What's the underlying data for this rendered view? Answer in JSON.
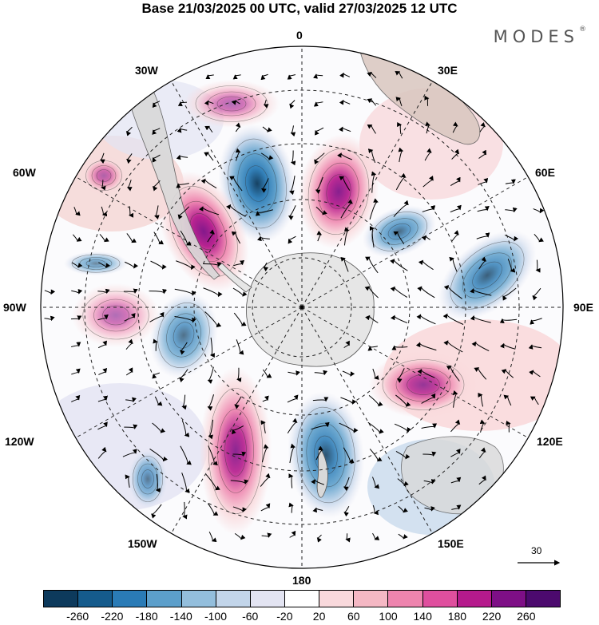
{
  "title": "Base 21/03/2025 00 UTC, valid 27/03/2025 12 UTC",
  "brand": "MODES",
  "brand_mark": "®",
  "meridian_labels": {
    "m0": "0",
    "m30e": "30E",
    "m60e": "60E",
    "m90e": "90E",
    "m120e": "120E",
    "m150e": "150E",
    "m180": "180",
    "m150w": "150W",
    "m120w": "120W",
    "m90w": "90W",
    "m60w": "60W",
    "m30w": "30W"
  },
  "wind_reference_label": "30",
  "colorbar": {
    "ticks": [
      "-260",
      "-220",
      "-180",
      "-140",
      "-100",
      "-60",
      "-20",
      "20",
      "60",
      "100",
      "140",
      "180",
      "220",
      "260"
    ],
    "colors": [
      "#0d3a5c",
      "#155b8c",
      "#2a7bb6",
      "#5c9fcb",
      "#93bedc",
      "#c2d5ea",
      "#e3e4f2",
      "#ffffff",
      "#f9d9dc",
      "#f5b8c4",
      "#ee84ae",
      "#df4f9e",
      "#b51a8c",
      "#7e0f86",
      "#4c0a6e"
    ]
  },
  "anomalies": [
    {
      "kind": "neg",
      "level": 0.85
    },
    {
      "kind": "pos",
      "level": 0.8
    },
    {
      "kind": "pos",
      "level": 0.85
    },
    {
      "kind": "neg",
      "level": 0.5
    },
    {
      "kind": "neg",
      "level": 0.6
    },
    {
      "kind": "neg",
      "level": 0.45
    },
    {
      "kind": "pos",
      "level": 0.6
    },
    {
      "kind": "pos",
      "level": 0.75
    },
    {
      "kind": "neg",
      "level": 0.7
    },
    {
      "kind": "neg",
      "level": 0.35
    },
    {
      "kind": "pos",
      "level": 0.25
    },
    {
      "kind": "pos",
      "level": 0.25
    },
    {
      "kind": "neg",
      "level": 0.25
    },
    {
      "kind": "pos",
      "level": 0.25
    }
  ]
}
